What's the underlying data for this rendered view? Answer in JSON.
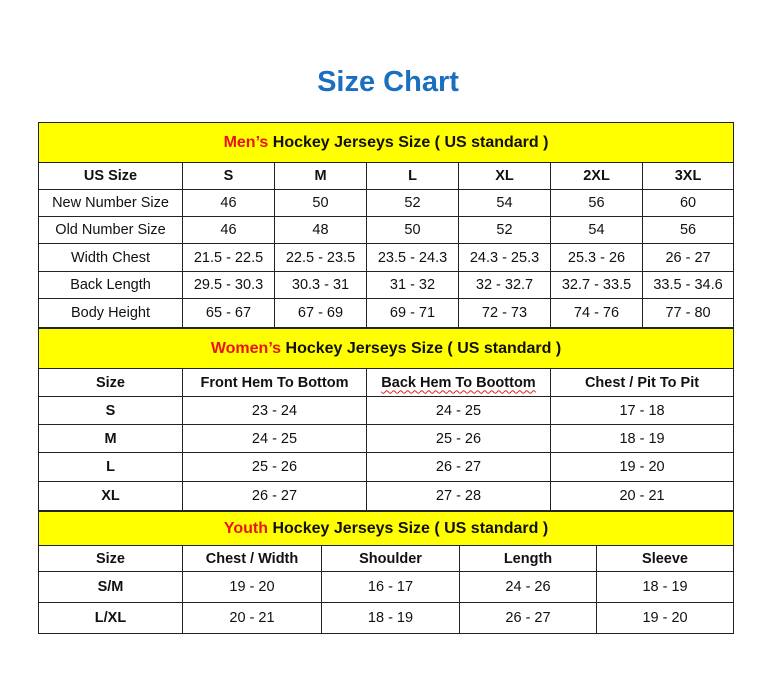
{
  "title": "Size Chart",
  "colors": {
    "title": "#1a6fc0",
    "band": "#ffff00",
    "accent_red": "#e8141a"
  },
  "men": {
    "band_prefix": "Men’s",
    "band_rest": " Hockey Jerseys Size ( US standard )",
    "headers": [
      "US Size",
      "S",
      "M",
      "L",
      "XL",
      "2XL",
      "3XL"
    ],
    "rows": [
      [
        "New Number Size",
        "46",
        "50",
        "52",
        "54",
        "56",
        "60"
      ],
      [
        "Old Number Size",
        "46",
        "48",
        "50",
        "52",
        "54",
        "56"
      ],
      [
        "Width Chest",
        "21.5 - 22.5",
        "22.5 - 23.5",
        "23.5 - 24.3",
        "24.3 - 25.3",
        "25.3 - 26",
        "26 - 27"
      ],
      [
        "Back Length",
        "29.5 - 30.3",
        "30.3 - 31",
        "31 - 32",
        "32 - 32.7",
        "32.7 - 33.5",
        "33.5 - 34.6"
      ],
      [
        "Body Height",
        "65 - 67",
        "67 - 69",
        "69 - 71",
        "72 - 73",
        "74 - 76",
        "77 - 80"
      ]
    ]
  },
  "women": {
    "band_prefix": "Women’s",
    "band_rest": " Hockey Jerseys Size ( US standard )",
    "headers": [
      "Size",
      "Front Hem To Bottom",
      "Back Hem To Boottom",
      "Chest / Pit To Pit"
    ],
    "rows": [
      [
        "S",
        "23 - 24",
        "24 - 25",
        "17 - 18"
      ],
      [
        "M",
        "24 - 25",
        "25 - 26",
        "18 - 19"
      ],
      [
        "L",
        "25 - 26",
        "26 - 27",
        "19 - 20"
      ],
      [
        "XL",
        "26 - 27",
        "27 - 28",
        "20 - 21"
      ]
    ]
  },
  "youth": {
    "band_prefix": "Youth",
    "band_rest": " Hockey Jerseys Size ( US standard )",
    "headers": [
      "Size",
      "Chest / Width",
      "Shoulder",
      "Length",
      "Sleeve"
    ],
    "rows": [
      [
        "S/M",
        "19 - 20",
        "16 - 17",
        "24 - 26",
        "18 - 19"
      ],
      [
        "L/XL",
        "20 - 21",
        "18 - 19",
        "26 - 27",
        "19 - 20"
      ]
    ]
  }
}
